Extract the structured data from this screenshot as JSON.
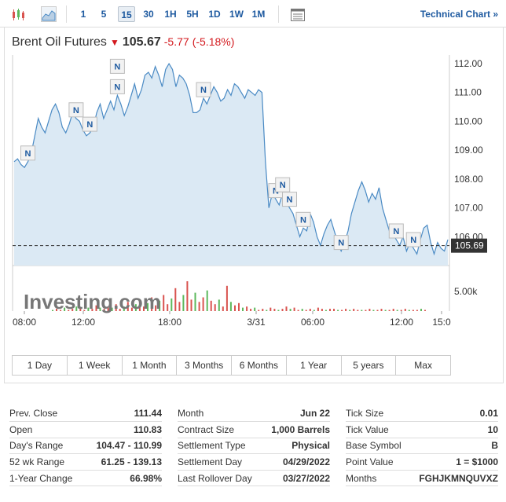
{
  "toolbar": {
    "icons": [
      "candlestick-icon",
      "area-chart-icon",
      "table-icon"
    ],
    "intervals": [
      {
        "label": "1",
        "active": false
      },
      {
        "label": "5",
        "active": false
      },
      {
        "label": "15",
        "active": true
      },
      {
        "label": "30",
        "active": false
      },
      {
        "label": "1H",
        "active": false
      },
      {
        "label": "5H",
        "active": false
      },
      {
        "label": "1D",
        "active": false
      },
      {
        "label": "1W",
        "active": false
      },
      {
        "label": "1M",
        "active": false
      }
    ],
    "technical_chart_label": "Technical Chart »"
  },
  "instrument": {
    "name": "Brent Oil Futures",
    "price": "105.67",
    "change": "-5.77",
    "change_pct": "(-5.18%)",
    "direction": "down"
  },
  "chart_data": {
    "type": "area",
    "ylim": [
      105.0,
      112.3
    ],
    "yticks": [
      "112.00",
      "111.00",
      "110.00",
      "109.00",
      "108.00",
      "107.00",
      "106.00"
    ],
    "xticks": [
      "08:00",
      "12:00",
      "18:00",
      "3/31",
      "06:00",
      "12:00",
      "15:0"
    ],
    "last_price_label": "105.69",
    "last_price": 105.69,
    "volume_label": "5.00k",
    "watermark": "Investing.com",
    "news_marker_label": "N",
    "colors": {
      "line": "#4a8ac4",
      "fill": "#dbe9f4",
      "up": "#5cb85c",
      "down": "#d9534f"
    },
    "prices": [
      108.6,
      108.7,
      108.5,
      108.4,
      108.6,
      108.9,
      109.5,
      110.1,
      109.8,
      109.6,
      110.0,
      110.4,
      110.6,
      110.3,
      109.8,
      109.6,
      109.9,
      110.3,
      110.1,
      110.0,
      109.7,
      109.5,
      109.6,
      109.8,
      110.3,
      110.6,
      110.1,
      110.4,
      110.7,
      110.4,
      110.9,
      110.6,
      110.2,
      110.5,
      110.9,
      111.3,
      110.8,
      111.1,
      111.6,
      111.7,
      111.5,
      111.9,
      111.6,
      111.2,
      111.8,
      112.0,
      111.8,
      111.2,
      111.6,
      111.5,
      111.3,
      110.9,
      110.3,
      110.3,
      110.4,
      110.8,
      110.6,
      110.9,
      111.2,
      111.0,
      110.7,
      110.8,
      111.1,
      110.9,
      111.3,
      111.2,
      111.0,
      110.8,
      111.1,
      111.0,
      110.9,
      111.1,
      111.0,
      108.6,
      107.0,
      107.5,
      107.3,
      107.1,
      107.5,
      107.2,
      107.0,
      106.8,
      106.4,
      106.0,
      106.3,
      106.2,
      106.8,
      106.5,
      106.0,
      105.7,
      106.1,
      106.4,
      106.6,
      106.2,
      105.8,
      105.5,
      105.8,
      106.2,
      106.8,
      107.2,
      107.6,
      107.9,
      107.6,
      107.2,
      107.5,
      107.3,
      107.7,
      107.0,
      106.6,
      106.2,
      106.1,
      105.9,
      105.7,
      106.0,
      105.5,
      105.8,
      105.6,
      105.4,
      105.9,
      106.3,
      106.4,
      105.8,
      105.4,
      105.8,
      105.6,
      105.5,
      105.9
    ],
    "news_markers": [
      4,
      18,
      22,
      30,
      30,
      55,
      76,
      78,
      80,
      84,
      95,
      111,
      116
    ],
    "volumes": [
      1,
      2,
      1,
      3,
      1,
      2,
      4,
      2,
      1,
      3,
      2,
      5,
      3,
      2,
      4,
      3,
      6,
      2,
      4,
      8,
      3,
      6,
      10,
      4,
      7,
      12,
      5,
      9,
      14,
      6,
      11,
      20,
      8,
      14,
      26,
      10,
      16,
      8,
      12,
      18,
      9,
      6,
      10,
      4,
      22,
      8,
      5,
      7,
      3,
      4,
      2,
      3,
      1,
      2,
      1,
      3,
      2,
      1,
      2,
      4,
      2,
      3,
      1,
      2,
      1,
      2,
      1,
      3,
      2,
      1,
      2,
      2,
      1,
      1,
      2,
      1,
      2,
      1,
      1,
      1,
      2,
      1,
      1,
      2,
      1,
      1,
      2,
      1,
      1,
      2,
      1,
      1,
      1,
      2,
      1
    ]
  },
  "periods": [
    "1 Day",
    "1 Week",
    "1 Month",
    "3 Months",
    "6 Months",
    "1 Year",
    "5 years",
    "Max"
  ],
  "stats": {
    "col1": [
      {
        "label": "Prev. Close",
        "value": "111.44"
      },
      {
        "label": "Open",
        "value": "110.83"
      },
      {
        "label": "Day's Range",
        "value": "104.47 - 110.99"
      },
      {
        "label": "52 wk Range",
        "value": "61.25 - 139.13"
      },
      {
        "label": "1-Year Change",
        "value": "66.98%"
      }
    ],
    "col2": [
      {
        "label": "Month",
        "value": "Jun 22"
      },
      {
        "label": "Contract Size",
        "value": "1,000 Barrels"
      },
      {
        "label": "Settlement Type",
        "value": "Physical"
      },
      {
        "label": "Settlement Day",
        "value": "04/29/2022"
      },
      {
        "label": "Last Rollover Day",
        "value": "03/27/2022"
      }
    ],
    "col3": [
      {
        "label": "Tick Size",
        "value": "0.01"
      },
      {
        "label": "Tick Value",
        "value": "10"
      },
      {
        "label": "Base Symbol",
        "value": "B"
      },
      {
        "label": "Point Value",
        "value": "1 = $1000"
      },
      {
        "label": "Months",
        "value": "FGHJKMNQUVXZ"
      }
    ]
  }
}
